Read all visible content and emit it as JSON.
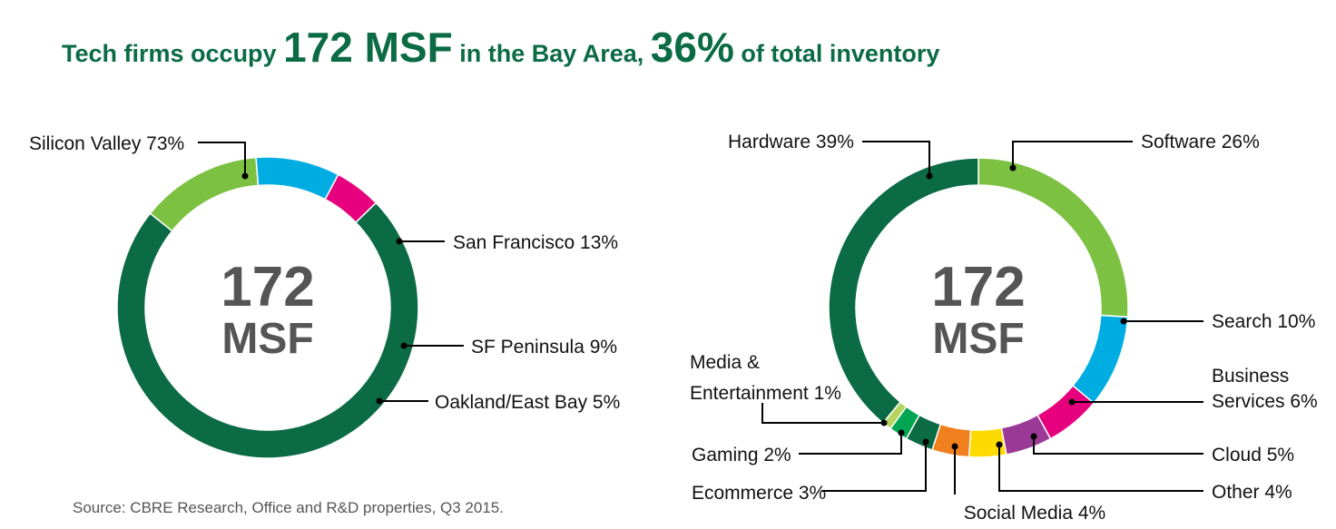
{
  "title": {
    "part1": "Tech firms occupy ",
    "big1": "172 MSF",
    "part2": " in the Bay Area, ",
    "big2": "36%",
    "part3": " of total inventory"
  },
  "source": "Source:  CBRE Research, Office and R&D properties, Q3 2015.",
  "colors": {
    "title": "#0b6b45",
    "dark_green": "#0b6b45",
    "light_green": "#7cc142",
    "blue": "#00ade3",
    "magenta": "#e6007e",
    "orange": "#f07f1e",
    "yellow": "#fddb00",
    "purple": "#9b3a96",
    "pale_green": "#b5d55e",
    "mid_green": "#00a651"
  },
  "chart_data": [
    {
      "type": "pie",
      "center_text": [
        "172",
        "MSF"
      ],
      "slices": [
        {
          "label": "Silicon Valley 73%",
          "value": 73,
          "color": "#0b6b45"
        },
        {
          "label": "San Francisco 13%",
          "value": 13,
          "color": "#7cc142"
        },
        {
          "label": "SF Peninsula 9%",
          "value": 9,
          "color": "#00ade3"
        },
        {
          "label": "Oakland/East Bay 5%",
          "value": 5,
          "color": "#e6007e"
        }
      ]
    },
    {
      "type": "pie",
      "center_text": [
        "172",
        "MSF"
      ],
      "slices": [
        {
          "label": "Software 26%",
          "value": 26,
          "color": "#7cc142"
        },
        {
          "label": "Search 10%",
          "value": 10,
          "color": "#00ade3"
        },
        {
          "label": "Business Services 6%",
          "value": 6,
          "color": "#e6007e",
          "label_lines": [
            "Business",
            "Services 6%"
          ]
        },
        {
          "label": "Cloud 5%",
          "value": 5,
          "color": "#9b3a96"
        },
        {
          "label": "Other 4%",
          "value": 4,
          "color": "#fddb00"
        },
        {
          "label": "Social Media 4%",
          "value": 4,
          "color": "#f07f1e"
        },
        {
          "label": "Ecommerce 3%",
          "value": 3,
          "color": "#0b6b45"
        },
        {
          "label": "Gaming 2%",
          "value": 2,
          "color": "#00a651"
        },
        {
          "label": "Media & Entertainment 1%",
          "value": 1,
          "color": "#b5d55e",
          "label_lines": [
            "Media &",
            "Entertainment 1%"
          ]
        },
        {
          "label": "Hardware 39%",
          "value": 39,
          "color": "#0b6b45"
        }
      ]
    }
  ]
}
